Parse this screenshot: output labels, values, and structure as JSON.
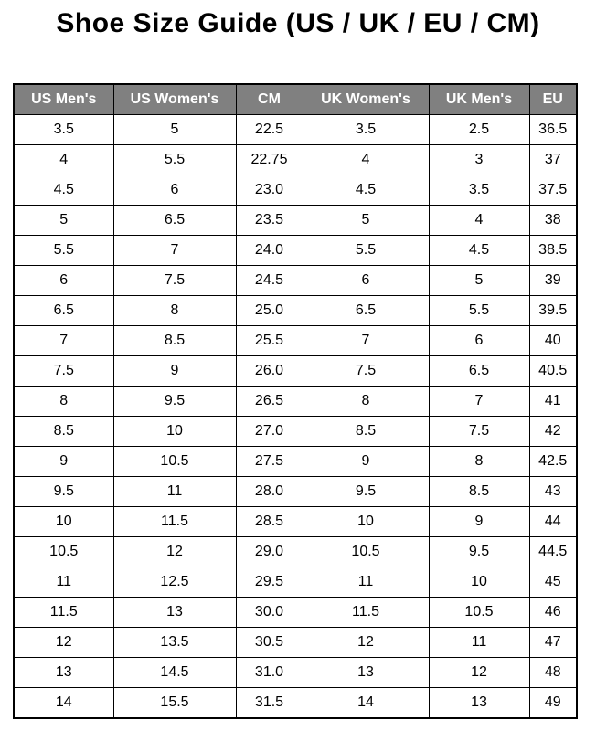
{
  "page": {
    "title": "Shoe Size Guide (US / UK / EU / CM)"
  },
  "colors": {
    "header_background": "#808080",
    "header_text": "#ffffff",
    "border": "#000000",
    "row_background": "#ffffff",
    "title_text": "#000000"
  },
  "table": {
    "headers": [
      "US Men's",
      "US Women's",
      "CM",
      "UK Women's",
      "UK Men's",
      "EU"
    ],
    "rows": [
      [
        "3.5",
        "5",
        "22.5",
        "3.5",
        "2.5",
        "36.5"
      ],
      [
        "4",
        "5.5",
        "22.75",
        "4",
        "3",
        "37"
      ],
      [
        "4.5",
        "6",
        "23.0",
        "4.5",
        "3.5",
        "37.5"
      ],
      [
        "5",
        "6.5",
        "23.5",
        "5",
        "4",
        "38"
      ],
      [
        "5.5",
        "7",
        "24.0",
        "5.5",
        "4.5",
        "38.5"
      ],
      [
        "6",
        "7.5",
        "24.5",
        "6",
        "5",
        "39"
      ],
      [
        "6.5",
        "8",
        "25.0",
        "6.5",
        "5.5",
        "39.5"
      ],
      [
        "7",
        "8.5",
        "25.5",
        "7",
        "6",
        "40"
      ],
      [
        "7.5",
        "9",
        "26.0",
        "7.5",
        "6.5",
        "40.5"
      ],
      [
        "8",
        "9.5",
        "26.5",
        "8",
        "7",
        "41"
      ],
      [
        "8.5",
        "10",
        "27.0",
        "8.5",
        "7.5",
        "42"
      ],
      [
        "9",
        "10.5",
        "27.5",
        "9",
        "8",
        "42.5"
      ],
      [
        "9.5",
        "11",
        "28.0",
        "9.5",
        "8.5",
        "43"
      ],
      [
        "10",
        "11.5",
        "28.5",
        "10",
        "9",
        "44"
      ],
      [
        "10.5",
        "12",
        "29.0",
        "10.5",
        "9.5",
        "44.5"
      ],
      [
        "11",
        "12.5",
        "29.5",
        "11",
        "10",
        "45"
      ],
      [
        "11.5",
        "13",
        "30.0",
        "11.5",
        "10.5",
        "46"
      ],
      [
        "12",
        "13.5",
        "30.5",
        "12",
        "11",
        "47"
      ],
      [
        "13",
        "14.5",
        "31.0",
        "13",
        "12",
        "48"
      ],
      [
        "14",
        "15.5",
        "31.5",
        "14",
        "13",
        "49"
      ]
    ]
  }
}
